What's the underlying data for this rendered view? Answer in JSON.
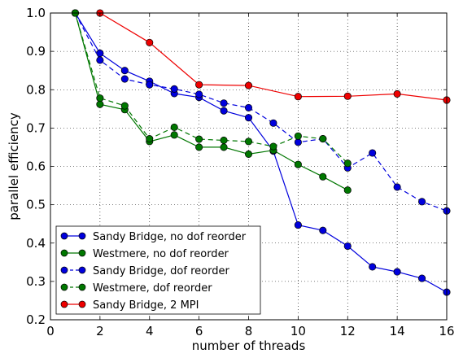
{
  "chart_data": {
    "type": "line",
    "title": "",
    "xlabel": "number of threads",
    "ylabel": "parallel efficiency",
    "xlim": [
      0,
      16
    ],
    "ylim": [
      0.2,
      1.0
    ],
    "xticks": [
      0,
      2,
      4,
      6,
      8,
      10,
      12,
      14,
      16
    ],
    "yticks": [
      0.2,
      0.3,
      0.4,
      0.5,
      0.6,
      0.7,
      0.8,
      0.9,
      1.0
    ],
    "xtick_labels": [
      "0",
      "2",
      "4",
      "6",
      "8",
      "10",
      "12",
      "14",
      "16"
    ],
    "ytick_labels": [
      "0.2",
      "0.3",
      "0.4",
      "0.5",
      "0.6",
      "0.7",
      "0.8",
      "0.9",
      "1.0"
    ],
    "grid": true,
    "legend_position": "bottom-left",
    "series": [
      {
        "name": "Sandy Bridge, no dof reorder",
        "color": "#0000dd",
        "line_style": "solid",
        "x": [
          1,
          2,
          3,
          4,
          5,
          6,
          7,
          8,
          9,
          10,
          11,
          12,
          13,
          14,
          15,
          16
        ],
        "y": [
          1.0,
          0.895,
          0.85,
          0.822,
          0.79,
          0.78,
          0.745,
          0.727,
          0.64,
          0.447,
          0.433,
          0.392,
          0.338,
          0.325,
          0.308,
          0.272
        ]
      },
      {
        "name": "Westmere, no dof reorder",
        "color": "#007700",
        "line_style": "solid",
        "x": [
          1,
          2,
          3,
          4,
          5,
          6,
          7,
          8,
          9,
          10,
          11,
          12
        ],
        "y": [
          1.0,
          0.762,
          0.748,
          0.665,
          0.682,
          0.65,
          0.65,
          0.632,
          0.642,
          0.605,
          0.573,
          0.538
        ]
      },
      {
        "name": "Sandy Bridge, dof reorder",
        "color": "#0000dd",
        "line_style": "dashed",
        "x": [
          1,
          2,
          3,
          4,
          5,
          6,
          7,
          8,
          9,
          10,
          11,
          12,
          13,
          14,
          15,
          16
        ],
        "y": [
          1.0,
          0.877,
          0.828,
          0.813,
          0.802,
          0.788,
          0.765,
          0.753,
          0.713,
          0.663,
          0.672,
          0.596,
          0.635,
          0.546,
          0.508,
          0.484
        ]
      },
      {
        "name": "Westmere, dof reorder",
        "color": "#007700",
        "line_style": "dashed",
        "x": [
          1,
          2,
          3,
          4,
          5,
          6,
          7,
          8,
          9,
          10,
          11,
          12
        ],
        "y": [
          1.0,
          0.778,
          0.758,
          0.672,
          0.702,
          0.671,
          0.668,
          0.665,
          0.652,
          0.679,
          0.672,
          0.608
        ]
      },
      {
        "name": "Sandy Bridge, 2 MPI",
        "color": "#ee0000",
        "line_style": "solid",
        "x": [
          2,
          4,
          6,
          8,
          10,
          12,
          14,
          16
        ],
        "y": [
          1.0,
          0.923,
          0.813,
          0.811,
          0.782,
          0.783,
          0.789,
          0.773
        ]
      }
    ]
  }
}
